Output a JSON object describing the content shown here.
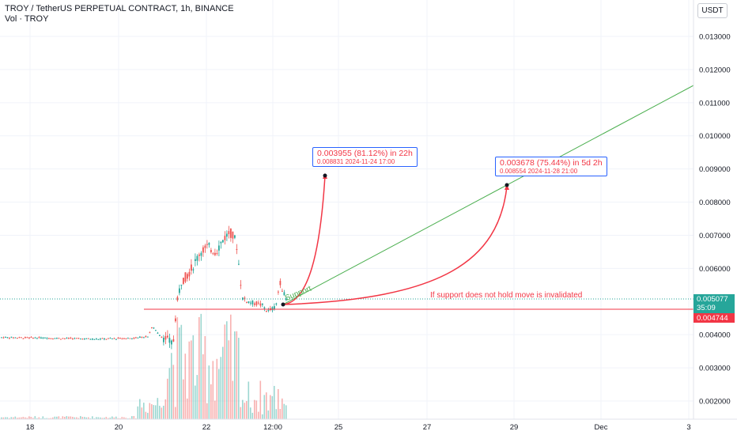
{
  "header": {
    "title": "TROY / TetherUS PERPETUAL CONTRACT, 1h, BINANCE",
    "volume_label": "Vol · TROY"
  },
  "currency_button": "USDT",
  "price_axis": {
    "ticks": [
      "0.013000",
      "0.012000",
      "0.011000",
      "0.010000",
      "0.009000",
      "0.008000",
      "0.007000",
      "0.006000",
      "0.004000",
      "0.003000",
      "0.002000"
    ]
  },
  "time_axis": {
    "ticks": [
      "18",
      "20",
      "22",
      "12:00",
      "25",
      "27",
      "29",
      "Dec",
      "3"
    ]
  },
  "price_labels": {
    "current": "0.005077",
    "countdown": "35:09",
    "support": "0.004744"
  },
  "annotations": {
    "target1": {
      "line1": "0.003955 (81.12%) in 22h",
      "line2": "0.008831    2024-11-24  17:00"
    },
    "target2": {
      "line1": "0.003678 (75.44%) in 5d 2h",
      "line2": "0.008554    2024-11-28  21:00"
    },
    "invalidation": "If support does not hold move is invalidated",
    "support": "Support"
  },
  "colors": {
    "up": "#26a69a",
    "down": "#ef5350",
    "target_curve": "#f23645",
    "trendline": "#4caf50",
    "annotation_border": "#2962ff"
  }
}
